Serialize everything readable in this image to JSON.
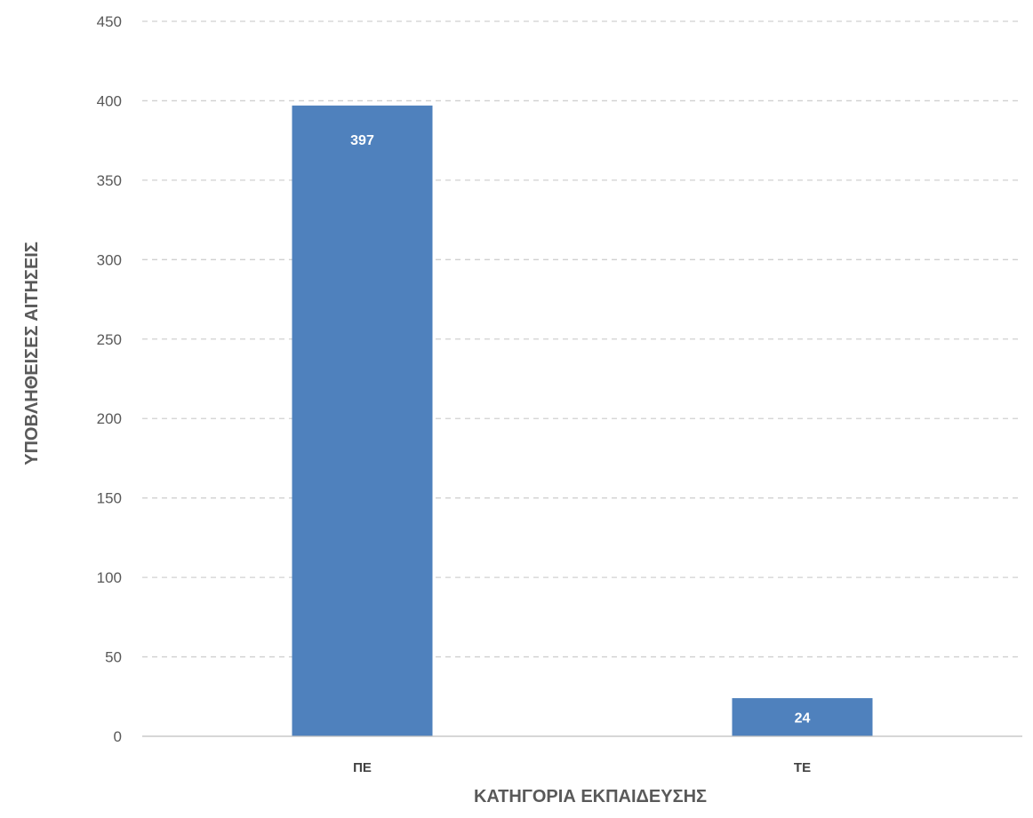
{
  "chart_data": {
    "type": "bar",
    "categories": [
      "ΠΕ",
      "ΤΕ"
    ],
    "values": [
      397,
      24
    ],
    "data_labels": [
      "397",
      "24"
    ],
    "title": "",
    "xlabel": "ΚΑΤΗΓΟΡΙΑ ΕΚΠΑΙΔΕΥΣΗΣ",
    "ylabel": "ΥΠΟΒΛΗΘΕΙΣΕΣ ΑΙΤΗΣΕΙΣ",
    "ylim": [
      0,
      450
    ],
    "yticks": [
      0,
      50,
      100,
      150,
      200,
      250,
      300,
      350,
      400,
      450
    ],
    "grid": true,
    "grid_style": "dashed",
    "legend": "none",
    "bar_color": "#4f81bd",
    "grid_color": "#d0d0d0",
    "axis_color": "#bfbfbf"
  }
}
